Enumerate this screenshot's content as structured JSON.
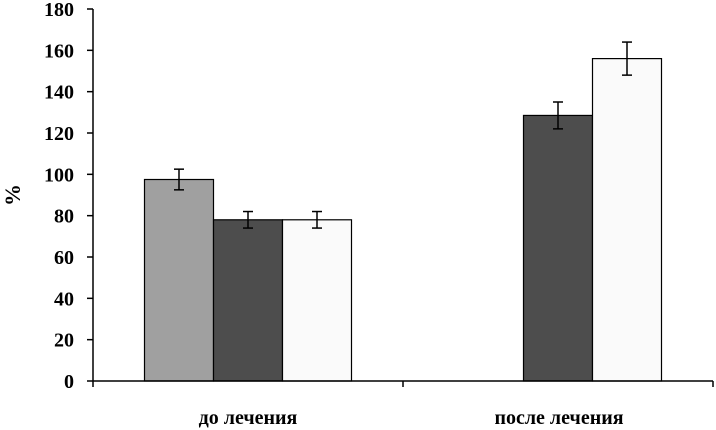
{
  "chart_data": {
    "type": "bar",
    "ylabel": "%",
    "xlabel": "",
    "ylim": [
      0,
      180
    ],
    "yticks": [
      0,
      20,
      40,
      60,
      80,
      100,
      120,
      140,
      160,
      180
    ],
    "categories": [
      "до лечения",
      "после лечения"
    ],
    "series": [
      {
        "color": "#a0a0a0",
        "values": [
          97.5,
          null
        ],
        "errors": [
          5,
          null
        ]
      },
      {
        "color": "#4d4d4d",
        "values": [
          78,
          128.5
        ],
        "errors": [
          4,
          6.5
        ]
      },
      {
        "color": "#fafafa",
        "values": [
          78,
          156
        ],
        "errors": [
          4,
          8
        ]
      }
    ],
    "grid": false,
    "legend": "none"
  }
}
